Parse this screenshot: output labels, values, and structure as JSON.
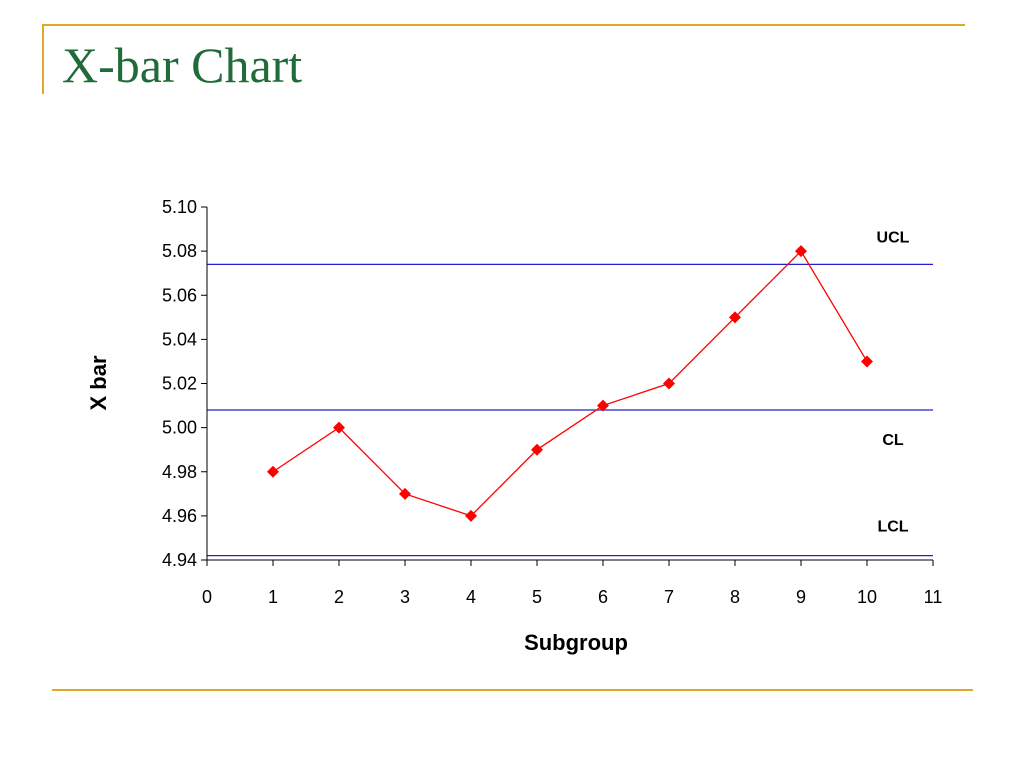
{
  "slide": {
    "title": "X-bar Chart"
  },
  "colors": {
    "title": "#1f6b3a",
    "accent_rule": "#e0a829",
    "series": "#ff0000",
    "limit_lines": "#2222cc"
  },
  "chart_data": {
    "type": "line",
    "title": "",
    "xlabel": "Subgroup",
    "ylabel": "X bar",
    "xlim": [
      0,
      11
    ],
    "ylim": [
      4.94,
      5.1
    ],
    "x_ticks": [
      "0",
      "1",
      "2",
      "3",
      "4",
      "5",
      "6",
      "7",
      "8",
      "9",
      "10",
      "11"
    ],
    "y_ticks": [
      "4.94",
      "4.96",
      "4.98",
      "5.00",
      "5.02",
      "5.04",
      "5.06",
      "5.08",
      "5.10"
    ],
    "grid": false,
    "marker": "diamond",
    "series": [
      {
        "x": [
          1,
          2,
          3,
          4,
          5,
          6,
          7,
          8,
          9,
          10
        ],
        "y": [
          4.98,
          5.0,
          4.97,
          4.96,
          4.99,
          5.01,
          5.02,
          5.05,
          5.08,
          5.03
        ]
      }
    ],
    "control_limits": [
      {
        "label": "UCL",
        "value": 5.074
      },
      {
        "label": "CL",
        "value": 5.008
      },
      {
        "label": "LCL",
        "value": 4.942
      }
    ]
  }
}
